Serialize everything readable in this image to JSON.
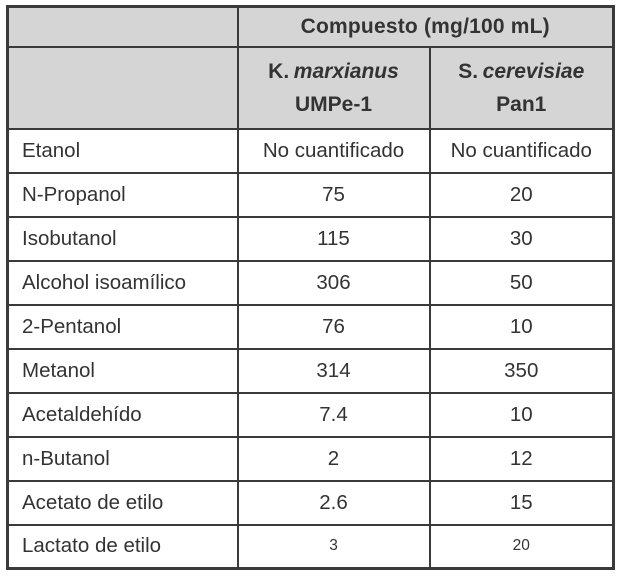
{
  "chart_data": {
    "type": "table",
    "title": "Compuesto (mg/100 mL)",
    "columns": [
      "",
      "K. marxianus UMPe-1",
      "S. cerevisiae Pan1"
    ],
    "rows": [
      [
        "Etanol",
        "No cuantificado",
        "No cuantificado"
      ],
      [
        "N-Propanol",
        75,
        20
      ],
      [
        "Isobutanol",
        115,
        30
      ],
      [
        "Alcohol isoamílico",
        306,
        50
      ],
      [
        "2-Pentanol",
        76,
        10
      ],
      [
        "Metanol",
        314,
        350
      ],
      [
        "Acetaldehído",
        7.4,
        10
      ],
      [
        "n-Butanol",
        2,
        12
      ],
      [
        "Acetato de etilo",
        2.6,
        15
      ],
      [
        "Lactato de etilo",
        3,
        20
      ]
    ]
  },
  "table": {
    "group_header": "Compuesto (mg/100 mL)",
    "columns": [
      {
        "genus": "K.",
        "species": "marxianus",
        "strain": "UMPe-1"
      },
      {
        "genus": "S.",
        "species": "cerevisiae",
        "strain": "Pan1"
      }
    ],
    "rows": [
      {
        "compound": "Etanol",
        "values": [
          "No cuantificado",
          "No cuantificado"
        ]
      },
      {
        "compound": "N-Propanol",
        "values": [
          "75",
          "20"
        ]
      },
      {
        "compound": "Isobutanol",
        "values": [
          "115",
          "30"
        ]
      },
      {
        "compound": "Alcohol isoamílico",
        "values": [
          "306",
          "50"
        ]
      },
      {
        "compound": "2-Pentanol",
        "values": [
          "76",
          "10"
        ]
      },
      {
        "compound": "Metanol",
        "values": [
          "314",
          "350"
        ]
      },
      {
        "compound": "Acetaldehído",
        "values": [
          "7.4",
          "10"
        ]
      },
      {
        "compound": "n-Butanol",
        "values": [
          "2",
          "12"
        ]
      },
      {
        "compound": "Acetato de etilo",
        "values": [
          "2.6",
          "15"
        ]
      },
      {
        "compound": "Lactato de etilo",
        "values": [
          "3",
          "20"
        ]
      }
    ]
  },
  "colors": {
    "border": "#3a3a3a",
    "header_bg": "#d5d5d5",
    "text": "#333333",
    "background": "#ffffff"
  }
}
